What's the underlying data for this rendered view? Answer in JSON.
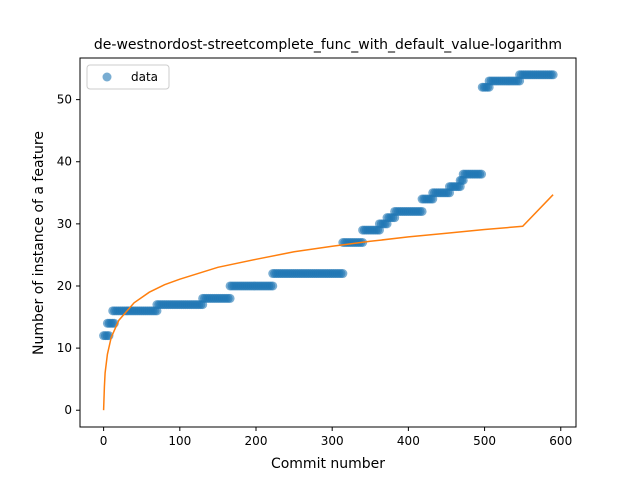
{
  "chart_data": {
    "type": "scatter",
    "title": "de-westnordost-streetcomplete_func_with_default_value-logarithm",
    "xlabel": "Commit number",
    "ylabel": "Number of instance of a feature",
    "xlim": [
      -31,
      620
    ],
    "ylim": [
      -2.7,
      56.7
    ],
    "xticks": [
      0,
      100,
      200,
      300,
      400,
      500,
      600
    ],
    "yticks": [
      0,
      10,
      20,
      30,
      40,
      50
    ],
    "grid": false,
    "legend": {
      "placement": "top-left",
      "entries": [
        "data"
      ]
    },
    "colors": {
      "data": "#1f77b4",
      "fit": "#ff7f0e"
    },
    "series": [
      {
        "name": "data",
        "kind": "points",
        "segments": [
          {
            "x_start": 0,
            "x_end": 7,
            "y": 12
          },
          {
            "x_start": 5,
            "x_end": 14,
            "y": 14
          },
          {
            "x_start": 12,
            "x_end": 70,
            "y": 16
          },
          {
            "x_start": 70,
            "x_end": 130,
            "y": 17
          },
          {
            "x_start": 130,
            "x_end": 166,
            "y": 18
          },
          {
            "x_start": 166,
            "x_end": 222,
            "y": 20
          },
          {
            "x_start": 222,
            "x_end": 314,
            "y": 22
          },
          {
            "x_start": 314,
            "x_end": 340,
            "y": 27
          },
          {
            "x_start": 340,
            "x_end": 362,
            "y": 29
          },
          {
            "x_start": 362,
            "x_end": 372,
            "y": 30
          },
          {
            "x_start": 372,
            "x_end": 382,
            "y": 31
          },
          {
            "x_start": 382,
            "x_end": 418,
            "y": 32
          },
          {
            "x_start": 418,
            "x_end": 432,
            "y": 34
          },
          {
            "x_start": 432,
            "x_end": 454,
            "y": 35
          },
          {
            "x_start": 454,
            "x_end": 468,
            "y": 36
          },
          {
            "x_start": 468,
            "x_end": 472,
            "y": 37
          },
          {
            "x_start": 472,
            "x_end": 496,
            "y": 38
          },
          {
            "x_start": 497,
            "x_end": 506,
            "y": 52
          },
          {
            "x_start": 506,
            "x_end": 546,
            "y": 53
          },
          {
            "x_start": 546,
            "x_end": 590,
            "y": 54
          }
        ]
      },
      {
        "name": "",
        "kind": "logarithmic fit",
        "x": [
          0,
          1,
          2,
          5,
          10,
          20,
          40,
          60,
          80,
          100,
          150,
          200,
          250,
          300,
          350,
          400,
          450,
          500,
          550,
          590
        ],
        "y": [
          0,
          3.8,
          6.0,
          9.0,
          11.7,
          14.5,
          17.3,
          19.0,
          20.2,
          21.1,
          23.0,
          24.3,
          25.5,
          26.4,
          27.2,
          27.9,
          28.5,
          29.1,
          29.6,
          34.7
        ]
      }
    ]
  }
}
